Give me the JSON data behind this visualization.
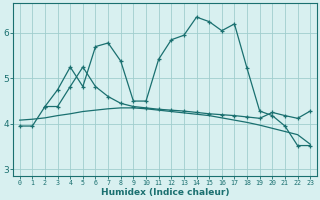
{
  "xlabel": "Humidex (Indice chaleur)",
  "background_color": "#d8f0f0",
  "grid_color": "#a0cece",
  "line_color": "#1a7070",
  "x_ticks": [
    0,
    1,
    2,
    3,
    4,
    5,
    6,
    7,
    8,
    9,
    10,
    11,
    12,
    13,
    14,
    15,
    16,
    17,
    18,
    19,
    20,
    21,
    22,
    23
  ],
  "ylim": [
    2.85,
    6.65
  ],
  "xlim": [
    -0.5,
    23.5
  ],
  "series1_x": [
    0,
    1,
    2,
    3,
    4,
    5,
    6,
    7,
    8,
    9,
    10,
    11,
    12,
    13,
    14,
    15,
    16,
    17,
    18,
    19,
    20,
    21,
    22,
    23
  ],
  "series1_y": [
    3.95,
    3.95,
    4.38,
    4.75,
    5.25,
    4.82,
    5.7,
    5.78,
    5.38,
    4.5,
    4.5,
    5.42,
    5.85,
    5.95,
    6.35,
    6.25,
    6.05,
    6.2,
    5.22,
    4.28,
    4.18,
    3.95,
    3.52,
    3.52
  ],
  "series2_x": [
    2,
    3,
    4,
    5,
    6,
    7,
    8,
    9,
    10,
    11,
    12,
    13,
    14,
    15,
    16,
    17,
    18,
    19,
    20,
    21,
    22,
    23
  ],
  "series2_y": [
    4.38,
    4.38,
    4.82,
    5.25,
    4.82,
    4.6,
    4.45,
    4.38,
    4.35,
    4.32,
    4.3,
    4.28,
    4.25,
    4.22,
    4.2,
    4.18,
    4.15,
    4.12,
    4.25,
    4.18,
    4.12,
    4.28
  ],
  "series3_x": [
    0,
    1,
    2,
    3,
    4,
    5,
    6,
    7,
    8,
    9,
    10,
    11,
    12,
    13,
    14,
    15,
    16,
    17,
    18,
    19,
    20,
    21,
    22,
    23
  ],
  "series3_y": [
    4.08,
    4.1,
    4.13,
    4.18,
    4.22,
    4.27,
    4.3,
    4.33,
    4.35,
    4.35,
    4.33,
    4.3,
    4.27,
    4.24,
    4.21,
    4.18,
    4.13,
    4.08,
    4.03,
    3.97,
    3.9,
    3.83,
    3.76,
    3.55
  ]
}
